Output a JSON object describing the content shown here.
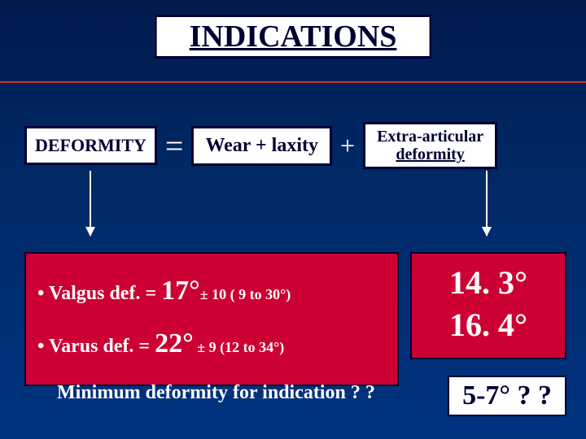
{
  "title": "INDICATIONS",
  "equation": {
    "deformity": "DEFORMITY",
    "equals": "=",
    "wear": "Wear + laxity",
    "plus": "+",
    "extra_line1": "Extra-articular",
    "extra_line2": "deformity"
  },
  "bullets": {
    "line1_pre": "•  Valgus def. = ",
    "line1_big": "17°",
    "line1_mid": "± 10  ",
    "line1_end": "( 9 to 30°)",
    "line2_pre": "•  Varus  def. = ",
    "line2_big": "22°",
    "line2_mid": " ±  9  ",
    "line2_end": "(12 to 34°)"
  },
  "values": {
    "v1": "14. 3°",
    "v2": "16. 4°"
  },
  "minimum": {
    "question": "Minimum deformity for indication  ? ?",
    "answer": "5-7°  ? ?"
  },
  "colors": {
    "bg_top": "#001a4d",
    "bg_bottom": "#003380",
    "red": "#cc0033",
    "border": "#000033",
    "hr": "#cc3333"
  }
}
